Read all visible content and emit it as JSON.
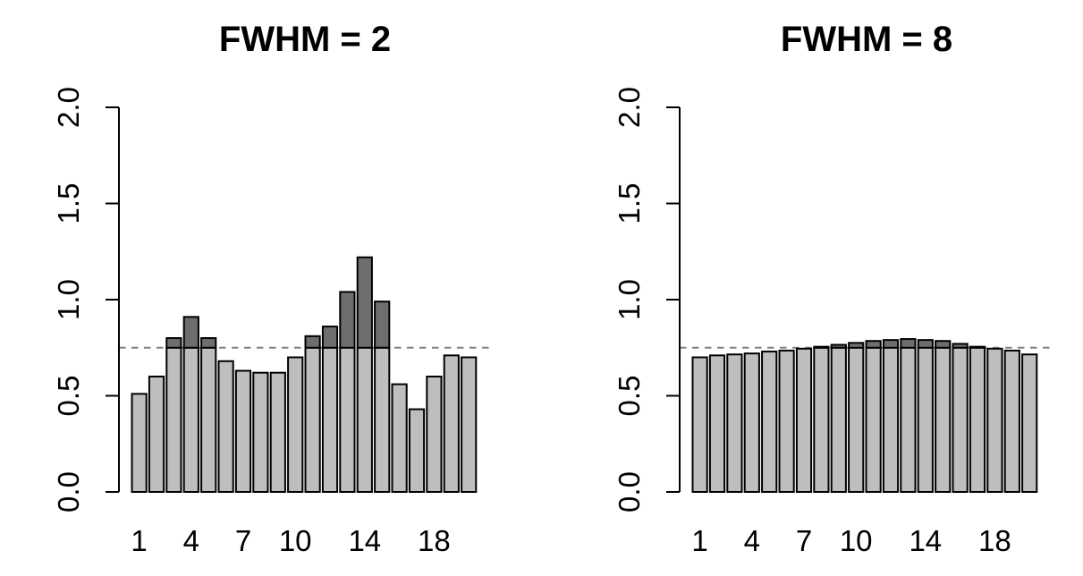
{
  "page": {
    "background": "#FFFFFF"
  },
  "chart_data": [
    {
      "type": "bar",
      "title": "FWHM = 2",
      "categories": [
        1,
        2,
        3,
        4,
        5,
        6,
        7,
        8,
        9,
        10,
        11,
        12,
        13,
        14,
        15,
        16,
        17,
        18,
        19,
        20
      ],
      "values": [
        0.51,
        0.6,
        0.8,
        0.91,
        0.8,
        0.68,
        0.63,
        0.62,
        0.62,
        0.7,
        0.81,
        0.86,
        1.04,
        1.22,
        0.99,
        0.56,
        0.43,
        0.6,
        0.71,
        0.7
      ],
      "threshold": 0.75,
      "xlabel": "",
      "ylabel": "",
      "ylim": [
        0.0,
        2.0
      ],
      "ytick_values": [
        0.0,
        0.5,
        1.0,
        1.5,
        2.0
      ],
      "ytick_labels": [
        "0.0",
        "0.5",
        "1.0",
        "1.5",
        "2.0"
      ],
      "xticks": [
        {
          "at": 1,
          "label": "1"
        },
        {
          "at": 4,
          "label": "4"
        },
        {
          "at": 7,
          "label": "7"
        },
        {
          "at": 10,
          "label": "10"
        },
        {
          "at": 14,
          "label": "14"
        },
        {
          "at": 18,
          "label": "18"
        }
      ],
      "grid": false,
      "legend": "none",
      "colors": {
        "bar_below_threshold": "#BEBEBE",
        "bar_above_threshold": "#6E6E6E",
        "bar_border": "#000000",
        "threshold_line": "#808080",
        "axis": "#000000",
        "text": "#000000"
      }
    },
    {
      "type": "bar",
      "title": "FWHM = 8",
      "categories": [
        1,
        2,
        3,
        4,
        5,
        6,
        7,
        8,
        9,
        10,
        11,
        12,
        13,
        14,
        15,
        16,
        17,
        18,
        19,
        20
      ],
      "values": [
        0.7,
        0.71,
        0.715,
        0.72,
        0.73,
        0.735,
        0.745,
        0.755,
        0.765,
        0.775,
        0.785,
        0.79,
        0.795,
        0.79,
        0.785,
        0.77,
        0.755,
        0.745,
        0.735,
        0.715
      ],
      "threshold": 0.75,
      "xlabel": "",
      "ylabel": "",
      "ylim": [
        0.0,
        2.0
      ],
      "ytick_values": [
        0.0,
        0.5,
        1.0,
        1.5,
        2.0
      ],
      "ytick_labels": [
        "0.0",
        "0.5",
        "1.0",
        "1.5",
        "2.0"
      ],
      "xticks": [
        {
          "at": 1,
          "label": "1"
        },
        {
          "at": 4,
          "label": "4"
        },
        {
          "at": 7,
          "label": "7"
        },
        {
          "at": 10,
          "label": "10"
        },
        {
          "at": 14,
          "label": "14"
        },
        {
          "at": 18,
          "label": "18"
        }
      ],
      "grid": false,
      "legend": "none",
      "colors": {
        "bar_below_threshold": "#BEBEBE",
        "bar_above_threshold": "#6E6E6E",
        "bar_border": "#000000",
        "threshold_line": "#808080",
        "axis": "#000000",
        "text": "#000000"
      }
    }
  ]
}
